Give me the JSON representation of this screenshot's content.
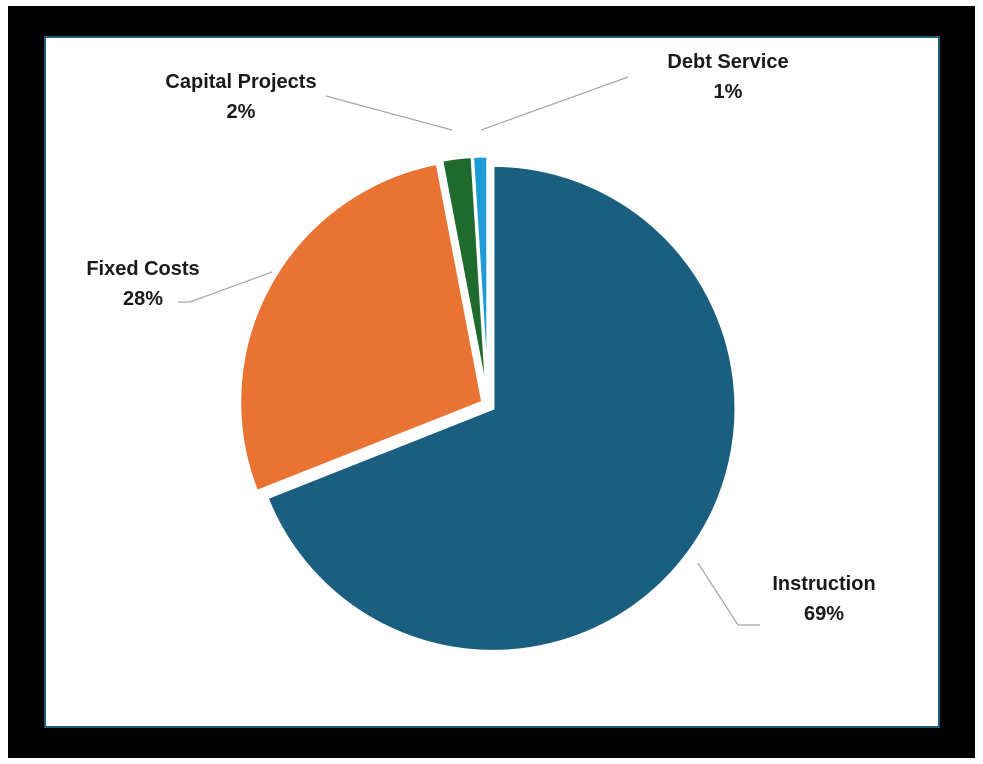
{
  "chart_data": {
    "type": "pie",
    "title": "",
    "start_angle_deg": 0,
    "direction": "clockwise",
    "slices": [
      {
        "label": "Instruction",
        "percent_label": "69%",
        "value": 69,
        "color": "#1a5e80"
      },
      {
        "label": "Fixed Costs",
        "percent_label": "28%",
        "value": 28,
        "color": "#e87333"
      },
      {
        "label": "Capital Projects",
        "percent_label": "2%",
        "value": 2,
        "color": "#1e6b2d"
      },
      {
        "label": "Debt Service",
        "percent_label": "1%",
        "value": 1,
        "color": "#1e9bd7"
      }
    ],
    "label_style": "outside with leader lines"
  },
  "colors": {
    "frame": "#000000",
    "panel_border": "#1f5a78",
    "leader_line": "#a6a6a6"
  }
}
